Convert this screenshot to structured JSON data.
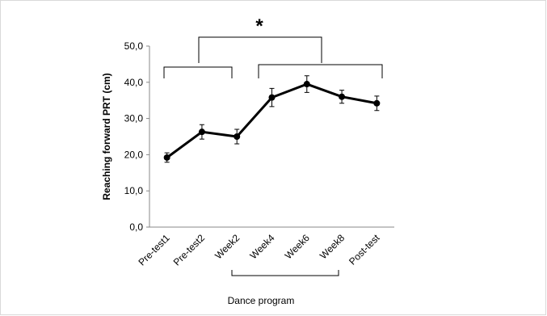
{
  "chart_data": {
    "type": "line",
    "y_label": "Reaching forward PRT (cm)",
    "x_label": "Dance program",
    "annotation": "*",
    "categories": [
      "Pre-test1",
      "Pre-test2",
      "Week2",
      "Week4",
      "Week6",
      "Week8",
      "Post-test"
    ],
    "values": [
      19.2,
      26.3,
      25.0,
      35.8,
      39.5,
      36.0,
      34.2
    ],
    "errors": [
      1.3,
      2.0,
      2.0,
      2.5,
      2.3,
      1.8,
      2.0
    ],
    "color": "#000000",
    "ylim": [
      0,
      50
    ],
    "yticks": [
      {
        "value": 0,
        "label": "0,0"
      },
      {
        "value": 10,
        "label": "10,0"
      },
      {
        "value": 20,
        "label": "20,0"
      },
      {
        "value": 30,
        "label": "30,0"
      },
      {
        "value": 40,
        "label": "40,0"
      },
      {
        "value": 50,
        "label": "50,0"
      }
    ],
    "grid": false
  }
}
